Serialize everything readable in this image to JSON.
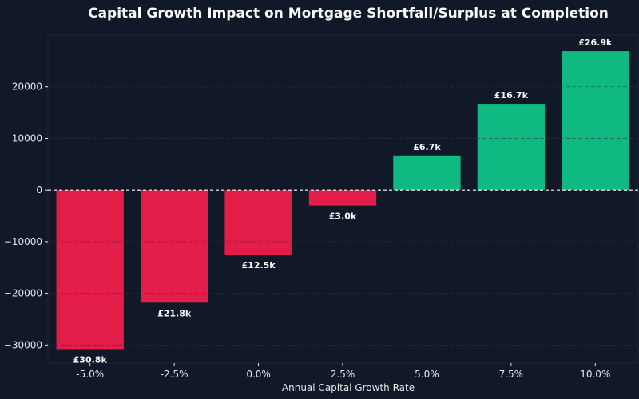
{
  "chart_data": {
    "type": "bar",
    "title": "Capital Growth Impact on Mortgage Shortfall/Surplus at Completion",
    "xlabel": "Annual Capital Growth Rate",
    "ylabel": "",
    "categories": [
      "-5.0%",
      "-2.5%",
      "0.0%",
      "2.5%",
      "5.0%",
      "7.5%",
      "10.0%"
    ],
    "values": [
      -30800,
      -21800,
      -12500,
      -3000,
      6700,
      16700,
      26900
    ],
    "data_labels": [
      "£30.8k",
      "£21.8k",
      "£12.5k",
      "£3.0k",
      "£6.7k",
      "£16.7k",
      "£26.9k"
    ],
    "ylim": [
      -33500,
      30000
    ],
    "yticks": [
      -30000,
      -20000,
      -10000,
      0,
      10000,
      20000
    ],
    "ytick_labels": [
      "−30000",
      "−20000",
      "−10000",
      "0",
      "10000",
      "20000"
    ],
    "grid": true,
    "zero_line": true,
    "colors": {
      "background": "#111827",
      "negative": "#e11d48",
      "positive": "#10b981",
      "grid": "#374151",
      "text": "#e5e7eb"
    }
  }
}
